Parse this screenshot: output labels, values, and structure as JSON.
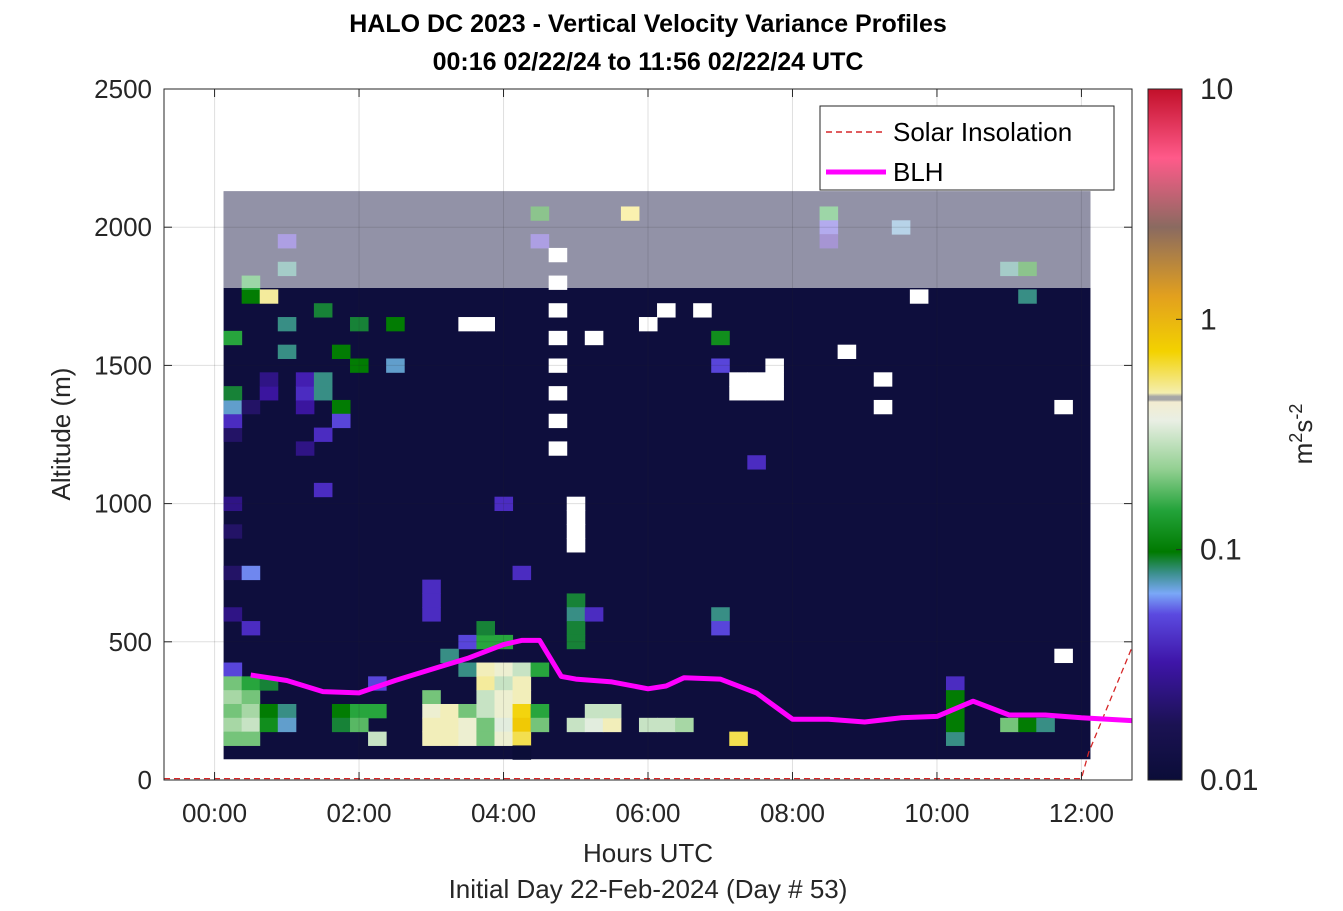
{
  "chart_data": {
    "type": "heatmap",
    "title": "HALO DC 2023 - Vertical Velocity Variance Profiles",
    "subtitle": "00:16 02/22/24 to 11:56 02/22/24  UTC",
    "xlabel": "Hours UTC",
    "xlabel_note": "Initial Day 22-Feb-2024 (Day # 53)",
    "ylabel": "Altitude (m)",
    "xlim": [
      -0.7,
      12.7
    ],
    "ylim": [
      0,
      2500
    ],
    "x_ticks": [
      0,
      2,
      4,
      6,
      8,
      10,
      12
    ],
    "x_tick_labels": [
      "00:00",
      "02:00",
      "04:00",
      "06:00",
      "08:00",
      "10:00",
      "12:00"
    ],
    "y_ticks": [
      0,
      500,
      1000,
      1500,
      2000,
      2500
    ],
    "y_tick_labels": [
      "0",
      "500",
      "1000",
      "1500",
      "2000",
      "2500"
    ],
    "grid": true,
    "legend_position": "top-right",
    "colorbar": {
      "label_base": "m",
      "label_sup1": "2",
      "label_mid": "s",
      "label_sup2": "-2",
      "scale": "log",
      "range": [
        0.01,
        10
      ],
      "ticks": [
        0.01,
        0.1,
        1,
        10
      ],
      "tick_labels": [
        "0.01",
        "0.1",
        "1",
        "10"
      ]
    },
    "series": [
      {
        "name": "Solar Insolation",
        "style": "dashed",
        "color": "#d62728",
        "x": [
          -0.7,
          12.0,
          12.1,
          12.7
        ],
        "y": [
          5,
          5,
          100,
          480
        ]
      },
      {
        "name": "BLH",
        "style": "solid",
        "color": "#ff00ff",
        "x": [
          0.5,
          1.0,
          1.5,
          2.0,
          2.5,
          3.0,
          3.5,
          4.0,
          4.25,
          4.5,
          4.8,
          5.0,
          5.5,
          6.0,
          6.25,
          6.5,
          7.0,
          7.5,
          8.0,
          8.5,
          9.0,
          9.5,
          10.0,
          10.5,
          11.0,
          11.5,
          12.0,
          12.7
        ],
        "y": [
          380,
          360,
          320,
          315,
          360,
          400,
          440,
          490,
          505,
          505,
          375,
          365,
          355,
          330,
          340,
          370,
          365,
          315,
          220,
          220,
          210,
          225,
          230,
          285,
          235,
          235,
          225,
          215
        ]
      }
    ],
    "heatmap_overview": {
      "x_range": [
        0.25,
        12.0
      ],
      "y_range": [
        100,
        2130
      ],
      "background_value": 0.011,
      "notes": "near-surface layer (100-400 m) mostly 0.1-1 with peaks ~0.5 around 03:00-05:00; elevated variance 0.02-0.1 in 00:15-02:00 up to 1400 m; sparse values above 1700 m"
    },
    "heatmap_cells": [
      {
        "x": 0.25,
        "y": 600,
        "v": 0.025
      },
      {
        "x": 0.25,
        "y": 750,
        "v": 0.02
      },
      {
        "x": 0.25,
        "y": 900,
        "v": 0.02
      },
      {
        "x": 0.25,
        "y": 1000,
        "v": 0.025
      },
      {
        "x": 0.25,
        "y": 1250,
        "v": 0.02
      },
      {
        "x": 0.25,
        "y": 1300,
        "v": 0.04
      },
      {
        "x": 0.25,
        "y": 1350,
        "v": 0.07
      },
      {
        "x": 0.25,
        "y": 1400,
        "v": 0.09
      },
      {
        "x": 0.25,
        "y": 1600,
        "v": 0.15
      },
      {
        "x": 0.25,
        "y": 400,
        "v": 0.05
      },
      {
        "x": 0.25,
        "y": 350,
        "v": 0.2
      },
      {
        "x": 0.25,
        "y": 300,
        "v": 0.25
      },
      {
        "x": 0.25,
        "y": 250,
        "v": 0.2
      },
      {
        "x": 0.25,
        "y": 200,
        "v": 0.25
      },
      {
        "x": 0.25,
        "y": 150,
        "v": 0.2
      },
      {
        "x": 0.5,
        "y": 350,
        "v": 0.15
      },
      {
        "x": 0.5,
        "y": 300,
        "v": 0.2
      },
      {
        "x": 0.5,
        "y": 250,
        "v": 0.25
      },
      {
        "x": 0.5,
        "y": 200,
        "v": 0.3
      },
      {
        "x": 0.5,
        "y": 150,
        "v": 0.2
      },
      {
        "x": 0.5,
        "y": 550,
        "v": 0.04
      },
      {
        "x": 0.5,
        "y": 750,
        "v": 0.06
      },
      {
        "x": 0.5,
        "y": 1350,
        "v": 0.02
      },
      {
        "x": 0.5,
        "y": 1750,
        "v": 0.1
      },
      {
        "x": 0.5,
        "y": 1800,
        "v": 0.15
      },
      {
        "x": 0.75,
        "y": 350,
        "v": 0.09
      },
      {
        "x": 0.75,
        "y": 250,
        "v": 0.1
      },
      {
        "x": 0.75,
        "y": 200,
        "v": 0.12
      },
      {
        "x": 0.75,
        "y": 1750,
        "v": 0.5
      },
      {
        "x": 0.75,
        "y": 1400,
        "v": 0.03
      },
      {
        "x": 0.75,
        "y": 1450,
        "v": 0.025
      },
      {
        "x": 1.0,
        "y": 250,
        "v": 0.08
      },
      {
        "x": 1.0,
        "y": 200,
        "v": 0.07
      },
      {
        "x": 1.0,
        "y": 1550,
        "v": 0.08
      },
      {
        "x": 1.0,
        "y": 1950,
        "v": 0.04
      },
      {
        "x": 1.0,
        "y": 1850,
        "v": 0.08
      },
      {
        "x": 1.0,
        "y": 1650,
        "v": 0.08
      },
      {
        "x": 1.25,
        "y": 1350,
        "v": 0.03
      },
      {
        "x": 1.25,
        "y": 1400,
        "v": 0.04
      },
      {
        "x": 1.25,
        "y": 1450,
        "v": 0.035
      },
      {
        "x": 1.25,
        "y": 1200,
        "v": 0.025
      },
      {
        "x": 1.5,
        "y": 1700,
        "v": 0.09
      },
      {
        "x": 1.5,
        "y": 1450,
        "v": 0.08
      },
      {
        "x": 1.5,
        "y": 1400,
        "v": 0.08
      },
      {
        "x": 1.5,
        "y": 1250,
        "v": 0.04
      },
      {
        "x": 1.5,
        "y": 1050,
        "v": 0.04
      },
      {
        "x": 1.75,
        "y": 1550,
        "v": 0.1
      },
      {
        "x": 1.75,
        "y": 1350,
        "v": 0.1
      },
      {
        "x": 1.75,
        "y": 1300,
        "v": 0.05
      },
      {
        "x": 1.75,
        "y": 250,
        "v": 0.1
      },
      {
        "x": 1.75,
        "y": 200,
        "v": 0.09
      },
      {
        "x": 2.0,
        "y": 1650,
        "v": 0.09
      },
      {
        "x": 2.0,
        "y": 1500,
        "v": 0.1
      },
      {
        "x": 2.0,
        "y": 250,
        "v": 0.15
      },
      {
        "x": 2.0,
        "y": 200,
        "v": 0.18
      },
      {
        "x": 2.25,
        "y": 350,
        "v": 0.05
      },
      {
        "x": 2.25,
        "y": 250,
        "v": 0.15
      },
      {
        "x": 2.25,
        "y": 150,
        "v": 0.3
      },
      {
        "x": 2.5,
        "y": 1500,
        "v": 0.07
      },
      {
        "x": 2.5,
        "y": 1650,
        "v": 0.1
      },
      {
        "x": 3.0,
        "y": 300,
        "v": 0.2
      },
      {
        "x": 3.0,
        "y": 250,
        "v": 0.4
      },
      {
        "x": 3.0,
        "y": 200,
        "v": 0.45
      },
      {
        "x": 3.0,
        "y": 150,
        "v": 0.45
      },
      {
        "x": 3.0,
        "y": 700,
        "v": 0.04
      },
      {
        "x": 3.0,
        "y": 650,
        "v": 0.04
      },
      {
        "x": 3.0,
        "y": 600,
        "v": 0.04
      },
      {
        "x": 3.25,
        "y": 250,
        "v": 0.45
      },
      {
        "x": 3.25,
        "y": 200,
        "v": 0.45
      },
      {
        "x": 3.25,
        "y": 150,
        "v": 0.45
      },
      {
        "x": 3.25,
        "y": 450,
        "v": 0.08
      },
      {
        "x": 3.5,
        "y": 250,
        "v": 0.2
      },
      {
        "x": 3.5,
        "y": 200,
        "v": 0.4
      },
      {
        "x": 3.5,
        "y": 150,
        "v": 0.4
      },
      {
        "x": 3.5,
        "y": 400,
        "v": 0.08
      },
      {
        "x": 3.5,
        "y": 500,
        "v": 0.05
      },
      {
        "x": 3.75,
        "y": 400,
        "v": 0.45
      },
      {
        "x": 3.75,
        "y": 350,
        "v": 0.5
      },
      {
        "x": 3.75,
        "y": 300,
        "v": 0.3
      },
      {
        "x": 3.75,
        "y": 250,
        "v": 0.3
      },
      {
        "x": 3.75,
        "y": 200,
        "v": 0.2
      },
      {
        "x": 3.75,
        "y": 150,
        "v": 0.2
      },
      {
        "x": 3.75,
        "y": 500,
        "v": 0.15
      },
      {
        "x": 3.75,
        "y": 550,
        "v": 0.09
      },
      {
        "x": 4.0,
        "y": 400,
        "v": 0.4
      },
      {
        "x": 4.0,
        "y": 350,
        "v": 0.3
      },
      {
        "x": 4.0,
        "y": 300,
        "v": 0.4
      },
      {
        "x": 4.0,
        "y": 250,
        "v": 0.4
      },
      {
        "x": 4.0,
        "y": 200,
        "v": 0.35
      },
      {
        "x": 4.0,
        "y": 150,
        "v": 0.4
      },
      {
        "x": 4.0,
        "y": 500,
        "v": 0.15
      },
      {
        "x": 4.0,
        "y": 1000,
        "v": 0.04
      },
      {
        "x": 4.25,
        "y": 300,
        "v": 0.45
      },
      {
        "x": 4.25,
        "y": 250,
        "v": 0.7
      },
      {
        "x": 4.25,
        "y": 200,
        "v": 0.8
      },
      {
        "x": 4.25,
        "y": 150,
        "v": 0.6
      },
      {
        "x": 4.25,
        "y": 100,
        "v": 0.01
      },
      {
        "x": 4.25,
        "y": 400,
        "v": 0.3
      },
      {
        "x": 4.25,
        "y": 350,
        "v": 0.45
      },
      {
        "x": 4.25,
        "y": 750,
        "v": 0.04
      },
      {
        "x": 4.5,
        "y": 400,
        "v": 0.15
      },
      {
        "x": 4.5,
        "y": 250,
        "v": 0.15
      },
      {
        "x": 4.5,
        "y": 200,
        "v": 0.2
      },
      {
        "x": 4.5,
        "y": 1950,
        "v": 0.04
      },
      {
        "x": 4.5,
        "y": 2050,
        "v": 0.1
      },
      {
        "x": 5.0,
        "y": 650,
        "v": 0.09
      },
      {
        "x": 5.0,
        "y": 600,
        "v": 0.08
      },
      {
        "x": 5.0,
        "y": 550,
        "v": 0.09
      },
      {
        "x": 5.0,
        "y": 500,
        "v": 0.09
      },
      {
        "x": 5.0,
        "y": 200,
        "v": 0.3
      },
      {
        "x": 5.25,
        "y": 600,
        "v": 0.04
      },
      {
        "x": 5.25,
        "y": 200,
        "v": 0.35
      },
      {
        "x": 5.25,
        "y": 250,
        "v": 0.3
      },
      {
        "x": 5.5,
        "y": 200,
        "v": 0.45
      },
      {
        "x": 5.5,
        "y": 250,
        "v": 0.3
      },
      {
        "x": 5.75,
        "y": 2050,
        "v": 0.6
      },
      {
        "x": 6.0,
        "y": 200,
        "v": 0.3
      },
      {
        "x": 6.25,
        "y": 200,
        "v": 0.3
      },
      {
        "x": 6.5,
        "y": 200,
        "v": 0.25
      },
      {
        "x": 7.0,
        "y": 1600,
        "v": 0.12
      },
      {
        "x": 7.0,
        "y": 1500,
        "v": 0.05
      },
      {
        "x": 7.0,
        "y": 600,
        "v": 0.08
      },
      {
        "x": 7.0,
        "y": 550,
        "v": 0.05
      },
      {
        "x": 7.25,
        "y": 150,
        "v": 0.6
      },
      {
        "x": 7.5,
        "y": 1150,
        "v": 0.04
      },
      {
        "x": 8.5,
        "y": 2050,
        "v": 0.15
      },
      {
        "x": 8.5,
        "y": 2000,
        "v": 0.05
      },
      {
        "x": 8.5,
        "y": 1950,
        "v": 0.03
      },
      {
        "x": 9.5,
        "y": 2000,
        "v": 0.07
      },
      {
        "x": 10.25,
        "y": 150,
        "v": 0.08
      },
      {
        "x": 10.25,
        "y": 200,
        "v": 0.1
      },
      {
        "x": 10.25,
        "y": 250,
        "v": 0.1
      },
      {
        "x": 10.25,
        "y": 350,
        "v": 0.04
      },
      {
        "x": 10.25,
        "y": 300,
        "v": 0.1
      },
      {
        "x": 11.0,
        "y": 1850,
        "v": 0.08
      },
      {
        "x": 11.25,
        "y": 1850,
        "v": 0.1
      },
      {
        "x": 11.25,
        "y": 1750,
        "v": 0.08
      },
      {
        "x": 11.0,
        "y": 200,
        "v": 0.2
      },
      {
        "x": 11.25,
        "y": 200,
        "v": 0.1
      },
      {
        "x": 11.5,
        "y": 200,
        "v": 0.08
      }
    ],
    "missing_cells": [
      {
        "x": 4.75,
        "y": 1200
      },
      {
        "x": 4.75,
        "y": 1300
      },
      {
        "x": 4.75,
        "y": 1400
      },
      {
        "x": 4.75,
        "y": 1500
      },
      {
        "x": 4.75,
        "y": 1600
      },
      {
        "x": 4.75,
        "y": 1700
      },
      {
        "x": 4.75,
        "y": 1800
      },
      {
        "x": 4.75,
        "y": 1900
      },
      {
        "x": 5.0,
        "y": 850
      },
      {
        "x": 5.0,
        "y": 900
      },
      {
        "x": 5.0,
        "y": 950
      },
      {
        "x": 5.0,
        "y": 1000
      },
      {
        "x": 3.5,
        "y": 1650
      },
      {
        "x": 3.75,
        "y": 1650
      },
      {
        "x": 5.25,
        "y": 1600
      },
      {
        "x": 6.0,
        "y": 1650
      },
      {
        "x": 6.25,
        "y": 1700
      },
      {
        "x": 6.75,
        "y": 1700
      },
      {
        "x": 7.25,
        "y": 1450
      },
      {
        "x": 7.25,
        "y": 1400
      },
      {
        "x": 7.5,
        "y": 1450
      },
      {
        "x": 7.5,
        "y": 1400
      },
      {
        "x": 7.75,
        "y": 1400
      },
      {
        "x": 7.75,
        "y": 1450
      },
      {
        "x": 7.75,
        "y": 1500
      },
      {
        "x": 8.75,
        "y": 1550
      },
      {
        "x": 9.25,
        "y": 1450
      },
      {
        "x": 9.25,
        "y": 1350
      },
      {
        "x": 9.75,
        "y": 1750
      },
      {
        "x": 11.75,
        "y": 1350
      },
      {
        "x": 11.75,
        "y": 450
      }
    ]
  }
}
